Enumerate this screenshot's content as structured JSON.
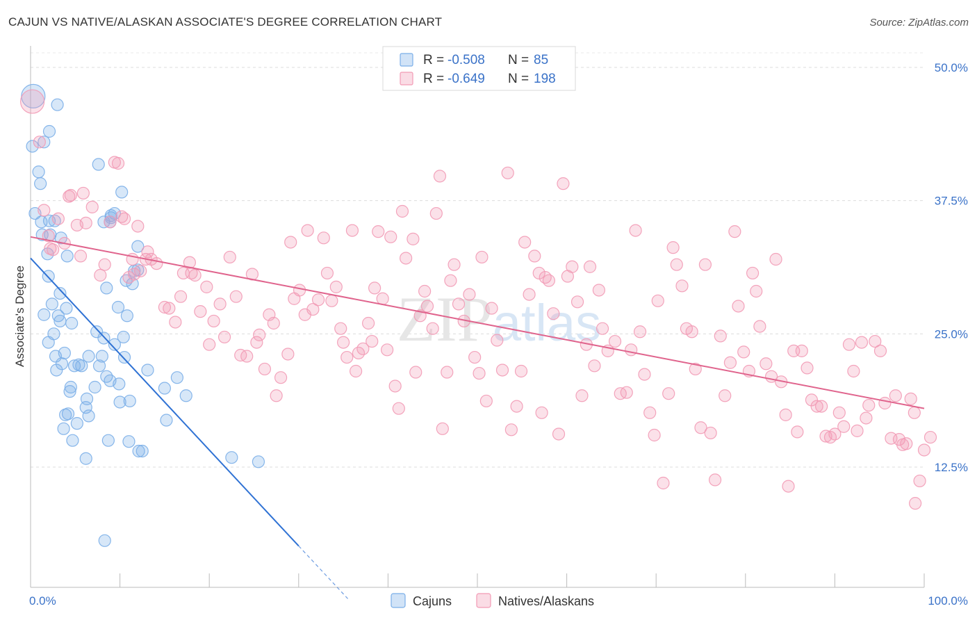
{
  "title": "CAJUN VS NATIVE/ALASKAN ASSOCIATE'S DEGREE CORRELATION CHART",
  "source": "Source: ZipAtlas.com",
  "watermark": "ZIPatlas",
  "colors": {
    "cajun": "#7aaee8",
    "cajun_line": "#2f72d4",
    "native": "#f29ab5",
    "native_line": "#e0648d",
    "value_text": "#3a72c8"
  },
  "legend_top": [
    {
      "r_label": "R = ",
      "r_value": "-0.508",
      "n_label": "N = ",
      "n_value": "85"
    },
    {
      "r_label": "R = ",
      "r_value": "-0.649",
      "n_label": "N = ",
      "n_value": "198"
    }
  ],
  "chart_data": {
    "type": "scatter",
    "xlabel": "",
    "ylabel": "Associate's Degree",
    "x_tick_labels": [
      "0.0%",
      "100.0%"
    ],
    "y_tick_labels": [
      "50.0%",
      "37.5%",
      "25.0%",
      "12.5%"
    ],
    "y_ticks": [
      50.0,
      37.5,
      25.0,
      12.5
    ],
    "xlim": [
      0,
      100
    ],
    "ylim": [
      0,
      52
    ],
    "grid": true,
    "legend_position": "bottom-center",
    "series": [
      {
        "name": "Cajuns",
        "r": -0.508,
        "n": 85,
        "trend": {
          "x0": 0,
          "y0": 32.1,
          "x1": 30,
          "y1": 5.1,
          "dash_to_x": 35.5
        },
        "points": [
          [
            0.3,
            47.3
          ],
          [
            0.2,
            42.6
          ],
          [
            0.9,
            40.2
          ],
          [
            1.1,
            39.1
          ],
          [
            0.5,
            36.3
          ],
          [
            1.2,
            35.5
          ],
          [
            2.1,
            35.6
          ],
          [
            2.7,
            35.6
          ],
          [
            1.3,
            34.3
          ],
          [
            2.2,
            34.3
          ],
          [
            3.4,
            34.0
          ],
          [
            1.9,
            32.5
          ],
          [
            4.1,
            32.3
          ],
          [
            2.0,
            30.4
          ],
          [
            3.3,
            28.8
          ],
          [
            4.0,
            27.4
          ],
          [
            2.4,
            27.8
          ],
          [
            3.1,
            26.7
          ],
          [
            1.5,
            26.8
          ],
          [
            4.6,
            26.0
          ],
          [
            3.3,
            26.2
          ],
          [
            2.6,
            25.0
          ],
          [
            2.8,
            22.9
          ],
          [
            3.8,
            23.2
          ],
          [
            2.9,
            21.6
          ],
          [
            3.5,
            22.2
          ],
          [
            4.9,
            22.0
          ],
          [
            5.4,
            22.1
          ],
          [
            5.7,
            22.0
          ],
          [
            2.0,
            24.2
          ],
          [
            4.5,
            20.0
          ],
          [
            4.4,
            19.6
          ],
          [
            6.3,
            18.9
          ],
          [
            4.2,
            17.5
          ],
          [
            3.9,
            17.4
          ],
          [
            6.2,
            18.1
          ],
          [
            5.2,
            16.6
          ],
          [
            3.7,
            16.1
          ],
          [
            6.5,
            17.3
          ],
          [
            4.7,
            15.0
          ],
          [
            7.2,
            20.0
          ],
          [
            8.5,
            21.0
          ],
          [
            8.9,
            20.6
          ],
          [
            9.9,
            20.3
          ],
          [
            8.2,
            24.6
          ],
          [
            7.4,
            25.2
          ],
          [
            7.7,
            22.0
          ],
          [
            6.5,
            22.9
          ],
          [
            8.0,
            22.9
          ],
          [
            9.4,
            24.0
          ],
          [
            10.4,
            24.7
          ],
          [
            10.8,
            26.7
          ],
          [
            9.8,
            27.5
          ],
          [
            8.5,
            29.3
          ],
          [
            10.7,
            30.0
          ],
          [
            11.6,
            30.9
          ],
          [
            11.4,
            29.7
          ],
          [
            12.0,
            31.0
          ],
          [
            12.0,
            33.2
          ],
          [
            8.9,
            35.5
          ],
          [
            9.0,
            35.9
          ],
          [
            7.6,
            40.9
          ],
          [
            10.2,
            38.3
          ],
          [
            9.0,
            36.1
          ],
          [
            9.4,
            36.3
          ],
          [
            8.2,
            35.5
          ],
          [
            10.5,
            22.8
          ],
          [
            10.0,
            18.6
          ],
          [
            11.1,
            18.7
          ],
          [
            12.1,
            14.0
          ],
          [
            12.5,
            14.0
          ],
          [
            13.1,
            21.6
          ],
          [
            15.0,
            19.9
          ],
          [
            16.4,
            20.9
          ],
          [
            15.2,
            16.9
          ],
          [
            17.4,
            19.2
          ],
          [
            8.7,
            15.0
          ],
          [
            11.0,
            14.9
          ],
          [
            6.2,
            13.3
          ],
          [
            22.5,
            13.4
          ],
          [
            25.5,
            13.0
          ],
          [
            3.0,
            46.5
          ],
          [
            2.1,
            44.0
          ],
          [
            1.5,
            43.0
          ],
          [
            8.3,
            5.6
          ]
        ]
      },
      {
        "name": "Natives/Alaskans",
        "r": -0.649,
        "n": 198,
        "trend": {
          "x0": 0,
          "y0": 34.1,
          "x1": 100,
          "y1": 18.0
        },
        "points": [
          [
            0.2,
            46.8
          ],
          [
            1.0,
            43.0
          ],
          [
            1.5,
            36.6
          ],
          [
            2.0,
            34.2
          ],
          [
            2.2,
            33.0
          ],
          [
            2.5,
            32.9
          ],
          [
            3.1,
            35.8
          ],
          [
            3.8,
            33.5
          ],
          [
            4.3,
            37.9
          ],
          [
            4.5,
            38.0
          ],
          [
            5.2,
            35.2
          ],
          [
            5.6,
            32.3
          ],
          [
            5.9,
            38.2
          ],
          [
            6.2,
            35.4
          ],
          [
            6.9,
            36.9
          ],
          [
            7.8,
            30.5
          ],
          [
            8.3,
            31.5
          ],
          [
            8.9,
            35.5
          ],
          [
            9.4,
            41.1
          ],
          [
            9.8,
            41.0
          ],
          [
            10.2,
            36.0
          ],
          [
            10.5,
            35.8
          ],
          [
            11.0,
            30.3
          ],
          [
            11.4,
            32.0
          ],
          [
            11.6,
            30.6
          ],
          [
            12.0,
            35.1
          ],
          [
            12.3,
            30.9
          ],
          [
            12.9,
            32.0
          ],
          [
            13.1,
            32.7
          ],
          [
            13.5,
            32.0
          ],
          [
            14.1,
            31.6
          ],
          [
            15.0,
            27.5
          ],
          [
            15.5,
            27.4
          ],
          [
            16.2,
            26.1
          ],
          [
            16.8,
            28.5
          ],
          [
            17.1,
            30.7
          ],
          [
            17.8,
            31.7
          ],
          [
            18.0,
            30.7
          ],
          [
            18.4,
            30.5
          ],
          [
            19.0,
            27.1
          ],
          [
            19.7,
            29.4
          ],
          [
            20.0,
            24.0
          ],
          [
            20.5,
            26.2
          ],
          [
            21.2,
            27.8
          ],
          [
            21.7,
            24.7
          ],
          [
            22.3,
            32.2
          ],
          [
            23.0,
            28.5
          ],
          [
            23.5,
            23.0
          ],
          [
            24.2,
            22.9
          ],
          [
            24.8,
            30.6
          ],
          [
            25.3,
            24.2
          ],
          [
            25.6,
            24.9
          ],
          [
            26.2,
            21.7
          ],
          [
            26.7,
            26.8
          ],
          [
            27.2,
            26.0
          ],
          [
            27.5,
            19.2
          ],
          [
            28.0,
            20.9
          ],
          [
            28.8,
            23.1
          ],
          [
            29.1,
            33.6
          ],
          [
            29.5,
            28.3
          ],
          [
            30.1,
            29.1
          ],
          [
            30.7,
            26.8
          ],
          [
            31.0,
            34.7
          ],
          [
            31.6,
            27.3
          ],
          [
            32.2,
            28.2
          ],
          [
            32.8,
            34.0
          ],
          [
            33.2,
            30.7
          ],
          [
            33.7,
            28.1
          ],
          [
            34.2,
            29.4
          ],
          [
            34.7,
            25.5
          ],
          [
            35.0,
            24.2
          ],
          [
            35.4,
            22.8
          ],
          [
            36.0,
            34.7
          ],
          [
            36.4,
            21.5
          ],
          [
            36.7,
            23.2
          ],
          [
            37.2,
            23.6
          ],
          [
            37.8,
            26.0
          ],
          [
            38.2,
            24.3
          ],
          [
            38.5,
            29.3
          ],
          [
            38.9,
            34.6
          ],
          [
            39.4,
            28.3
          ],
          [
            39.9,
            23.5
          ],
          [
            40.3,
            34.1
          ],
          [
            40.8,
            20.1
          ],
          [
            41.2,
            18.0
          ],
          [
            41.6,
            36.5
          ],
          [
            42.0,
            32.1
          ],
          [
            42.8,
            33.9
          ],
          [
            43.1,
            21.4
          ],
          [
            43.6,
            26.7
          ],
          [
            44.1,
            29.0
          ],
          [
            44.4,
            27.6
          ],
          [
            45.0,
            25.5
          ],
          [
            45.4,
            36.3
          ],
          [
            45.8,
            39.8
          ],
          [
            46.1,
            16.1
          ],
          [
            46.6,
            21.4
          ],
          [
            47.0,
            30.0
          ],
          [
            47.4,
            31.5
          ],
          [
            47.9,
            27.8
          ],
          [
            48.5,
            26.2
          ],
          [
            49.1,
            28.7
          ],
          [
            49.7,
            22.8
          ],
          [
            50.2,
            21.3
          ],
          [
            50.5,
            32.2
          ],
          [
            51.0,
            18.7
          ],
          [
            51.6,
            27.4
          ],
          [
            52.2,
            24.4
          ],
          [
            52.8,
            21.6
          ],
          [
            53.4,
            40.1
          ],
          [
            53.8,
            16.0
          ],
          [
            54.4,
            18.2
          ],
          [
            54.9,
            21.5
          ],
          [
            55.3,
            33.6
          ],
          [
            55.8,
            28.7
          ],
          [
            56.4,
            32.3
          ],
          [
            56.9,
            30.7
          ],
          [
            57.2,
            17.6
          ],
          [
            57.6,
            30.3
          ],
          [
            58.0,
            30.0
          ],
          [
            58.5,
            26.9
          ],
          [
            59.1,
            15.6
          ],
          [
            59.6,
            39.1
          ],
          [
            60.1,
            30.4
          ],
          [
            60.6,
            31.3
          ],
          [
            61.2,
            28.0
          ],
          [
            61.7,
            19.2
          ],
          [
            62.2,
            24.0
          ],
          [
            62.6,
            31.3
          ],
          [
            63.1,
            22.0
          ],
          [
            63.6,
            29.1
          ],
          [
            64.0,
            25.5
          ],
          [
            64.6,
            23.4
          ],
          [
            65.4,
            24.3
          ],
          [
            66.0,
            19.4
          ],
          [
            66.7,
            19.5
          ],
          [
            67.2,
            23.5
          ],
          [
            67.7,
            34.7
          ],
          [
            68.2,
            25.2
          ],
          [
            68.7,
            21.2
          ],
          [
            69.3,
            17.6
          ],
          [
            69.8,
            15.5
          ],
          [
            70.2,
            28.1
          ],
          [
            70.8,
            11.0
          ],
          [
            71.4,
            19.4
          ],
          [
            71.9,
            33.1
          ],
          [
            72.3,
            31.5
          ],
          [
            72.9,
            29.5
          ],
          [
            73.4,
            25.5
          ],
          [
            74.0,
            25.2
          ],
          [
            74.4,
            21.7
          ],
          [
            75.0,
            16.2
          ],
          [
            75.5,
            31.5
          ],
          [
            76.1,
            15.7
          ],
          [
            76.6,
            11.3
          ],
          [
            77.2,
            24.8
          ],
          [
            77.7,
            19.2
          ],
          [
            78.3,
            22.3
          ],
          [
            78.8,
            34.6
          ],
          [
            79.2,
            27.6
          ],
          [
            79.8,
            23.3
          ],
          [
            80.4,
            21.5
          ],
          [
            80.8,
            30.7
          ],
          [
            81.2,
            29.0
          ],
          [
            81.6,
            25.7
          ],
          [
            82.3,
            22.2
          ],
          [
            82.9,
            21.0
          ],
          [
            83.4,
            32.0
          ],
          [
            84.0,
            20.5
          ],
          [
            84.5,
            17.4
          ],
          [
            84.8,
            10.7
          ],
          [
            85.4,
            23.4
          ],
          [
            85.8,
            15.8
          ],
          [
            86.3,
            23.4
          ],
          [
            86.9,
            21.8
          ],
          [
            87.4,
            18.8
          ],
          [
            88.0,
            18.2
          ],
          [
            88.5,
            18.2
          ],
          [
            89.0,
            15.4
          ],
          [
            89.5,
            15.3
          ],
          [
            90.0,
            15.6
          ],
          [
            90.5,
            17.6
          ],
          [
            91.0,
            16.3
          ],
          [
            91.6,
            24.0
          ],
          [
            92.1,
            21.5
          ],
          [
            92.5,
            15.9
          ],
          [
            93.0,
            24.2
          ],
          [
            93.5,
            17.1
          ],
          [
            93.8,
            18.3
          ],
          [
            94.5,
            24.3
          ],
          [
            95.1,
            23.4
          ],
          [
            95.6,
            18.5
          ],
          [
            96.3,
            15.2
          ],
          [
            96.8,
            19.2
          ],
          [
            97.2,
            15.1
          ],
          [
            97.6,
            14.6
          ],
          [
            98.0,
            14.7
          ],
          [
            98.5,
            18.9
          ],
          [
            98.9,
            17.6
          ],
          [
            99.5,
            11.2
          ],
          [
            99.0,
            9.1
          ],
          [
            100.0,
            14.1
          ],
          [
            100.7,
            15.3
          ]
        ]
      }
    ]
  }
}
